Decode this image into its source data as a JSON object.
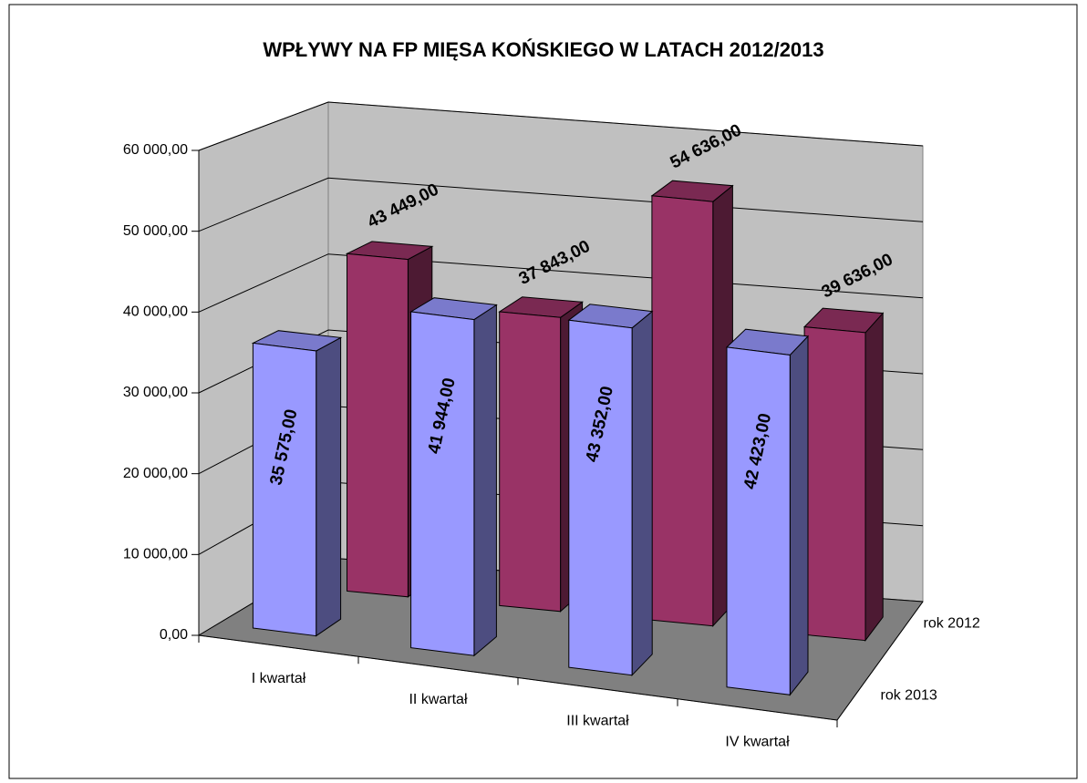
{
  "chart_data": {
    "type": "bar",
    "title": "WPŁYWY NA FP MIĘSA KOŃSKIEGO W LATACH 2012/2013",
    "categories": [
      "I kwartał",
      "II kwartał",
      "III kwartał",
      "IV kwartał"
    ],
    "series": [
      {
        "name": "rok 2012",
        "color": "#993366",
        "values": [
          43449,
          37843,
          54636,
          39636
        ],
        "value_labels": [
          "43 449,00",
          "37 843,00",
          "54 636,00",
          "39 636,00"
        ]
      },
      {
        "name": "rok 2013",
        "color": "#9999ff",
        "values": [
          35575,
          41944,
          43352,
          42423
        ],
        "value_labels": [
          "35 575,00",
          "41 944,00",
          "43 352,00",
          "42 423,00"
        ]
      }
    ],
    "ylim": [
      0,
      60000
    ],
    "yticks": [
      {
        "value": 0,
        "label": "0,00"
      },
      {
        "value": 10000,
        "label": "10 000,00"
      },
      {
        "value": 20000,
        "label": "20 000,00"
      },
      {
        "value": 30000,
        "label": "30 000,00"
      },
      {
        "value": 40000,
        "label": "40 000,00"
      },
      {
        "value": 50000,
        "label": "50 000,00"
      },
      {
        "value": 60000,
        "label": "60 000,00"
      }
    ],
    "grid": true
  }
}
